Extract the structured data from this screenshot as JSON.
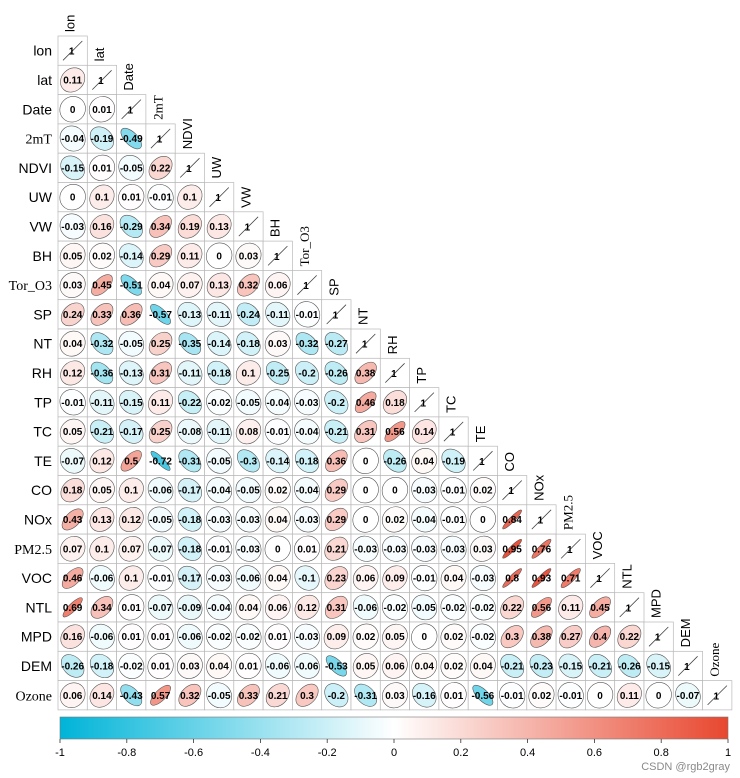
{
  "chart_data": {
    "type": "heatmap",
    "title": "",
    "variables": [
      "lon",
      "lat",
      "Date",
      "2mT",
      "NDVI",
      "UW",
      "VW",
      "BH",
      "Tor_O3",
      "SP",
      "NT",
      "RH",
      "TP",
      "TC",
      "TE",
      "CO",
      "NOx",
      "PM2.5",
      "VOC",
      "NTL",
      "MPD",
      "DEM",
      "Ozone"
    ],
    "row_labels": [
      "lon",
      "lat",
      "Date",
      "2mT",
      "NDVI",
      "UW",
      "VW",
      "BH",
      "Tor_O3",
      "SP",
      "NT",
      "RH",
      "TP",
      "TC",
      "TE",
      "CO",
      "NOx",
      "PM2.5",
      "VOC",
      "NTL",
      "MPD",
      "DEM",
      "Ozone"
    ],
    "column_labels": [
      "lon",
      "lat",
      "Date",
      "2mT",
      "NDVI",
      "UW",
      "VW",
      "BH",
      "Tor_O3",
      "SP",
      "NT",
      "RH",
      "TP",
      "TC",
      "TE",
      "CO",
      "NOx",
      "PM2.5",
      "VOC",
      "NTL",
      "MPD",
      "DEM",
      "Ozone"
    ],
    "diagonal_value": "1",
    "values": [
      [],
      [
        0.11
      ],
      [
        0,
        0.01
      ],
      [
        -0.04,
        -0.19,
        -0.49
      ],
      [
        -0.15,
        0.01,
        -0.05,
        0.22
      ],
      [
        0,
        0.1,
        0.01,
        -0.01,
        0.1
      ],
      [
        -0.03,
        0.16,
        -0.29,
        0.34,
        0.19,
        0.13
      ],
      [
        0.05,
        0.02,
        -0.14,
        0.29,
        0.11,
        0,
        0.03
      ],
      [
        0.03,
        0.45,
        -0.51,
        0.04,
        0.07,
        0.13,
        0.32,
        0.06
      ],
      [
        0.24,
        0.33,
        0.36,
        -0.57,
        -0.13,
        -0.11,
        -0.24,
        -0.11,
        -0.01
      ],
      [
        0.04,
        -0.32,
        -0.05,
        0.25,
        -0.35,
        -0.14,
        -0.18,
        0.03,
        -0.32,
        -0.27
      ],
      [
        0.12,
        -0.36,
        -0.13,
        0.31,
        -0.11,
        -0.18,
        0.1,
        -0.25,
        -0.2,
        -0.26,
        0.38
      ],
      [
        -0.01,
        -0.11,
        -0.15,
        0.11,
        -0.22,
        -0.02,
        -0.05,
        -0.04,
        -0.03,
        -0.2,
        0.46,
        0.18
      ],
      [
        0.05,
        -0.21,
        -0.17,
        0.25,
        -0.08,
        -0.11,
        0.08,
        -0.01,
        -0.04,
        -0.21,
        0.31,
        0.56,
        0.14
      ],
      [
        -0.07,
        0.12,
        0.5,
        -0.72,
        -0.31,
        -0.05,
        -0.3,
        -0.14,
        -0.18,
        0.36,
        0,
        -0.26,
        0.04,
        -0.19
      ],
      [
        0.18,
        0.05,
        0.1,
        -0.06,
        -0.17,
        -0.04,
        -0.05,
        0.02,
        -0.04,
        0.29,
        0,
        0,
        -0.03,
        -0.01,
        0.02
      ],
      [
        0.43,
        0.13,
        0.12,
        -0.05,
        -0.18,
        -0.03,
        -0.03,
        0.04,
        -0.03,
        0.29,
        0,
        0.02,
        -0.04,
        -0.01,
        0,
        0.84
      ],
      [
        0.07,
        0.1,
        0.07,
        -0.07,
        -0.18,
        -0.01,
        -0.03,
        0,
        0.01,
        0.21,
        -0.03,
        -0.03,
        -0.03,
        -0.03,
        0.03,
        0.95,
        0.76
      ],
      [
        0.46,
        -0.06,
        0.1,
        -0.01,
        -0.17,
        -0.03,
        -0.06,
        0.04,
        -0.1,
        0.23,
        0.06,
        0.09,
        -0.01,
        0.04,
        -0.03,
        0.8,
        0.93,
        0.71
      ],
      [
        0.69,
        0.34,
        0.01,
        -0.07,
        -0.09,
        -0.04,
        0.04,
        0.06,
        0.12,
        0.31,
        -0.06,
        -0.02,
        -0.05,
        -0.02,
        -0.02,
        0.22,
        0.56,
        0.11,
        0.45
      ],
      [
        0.16,
        -0.06,
        0.01,
        0.01,
        -0.06,
        -0.02,
        -0.02,
        0.01,
        -0.03,
        0.09,
        0.02,
        0.05,
        0,
        0.02,
        -0.02,
        0.3,
        0.38,
        0.27,
        0.4,
        0.22
      ],
      [
        -0.26,
        -0.18,
        -0.02,
        0.01,
        0.03,
        0.04,
        0.01,
        -0.06,
        -0.06,
        -0.53,
        0.05,
        0.06,
        0.04,
        0.02,
        0.04,
        -0.21,
        -0.23,
        -0.15,
        -0.21,
        -0.26,
        -0.15
      ],
      [
        0.06,
        0.14,
        -0.43,
        0.57,
        0.32,
        -0.05,
        0.33,
        0.21,
        0.3,
        -0.2,
        -0.31,
        0.03,
        -0.16,
        0.01,
        -0.56,
        -0.01,
        0.02,
        -0.01,
        0,
        0.11,
        0,
        -0.07
      ]
    ],
    "colorbar": {
      "range": [
        -1,
        1
      ],
      "ticks": [
        "-1",
        "-0.8",
        "-0.6",
        "-0.4",
        "-0.2",
        "0",
        "0.2",
        "0.4",
        "0.6",
        "0.8",
        "1"
      ],
      "colors": {
        "negative": "#00b4d8",
        "zero": "#ffffff",
        "positive": "#e8472f"
      }
    },
    "watermark": "CSDN @rgb2gray"
  }
}
